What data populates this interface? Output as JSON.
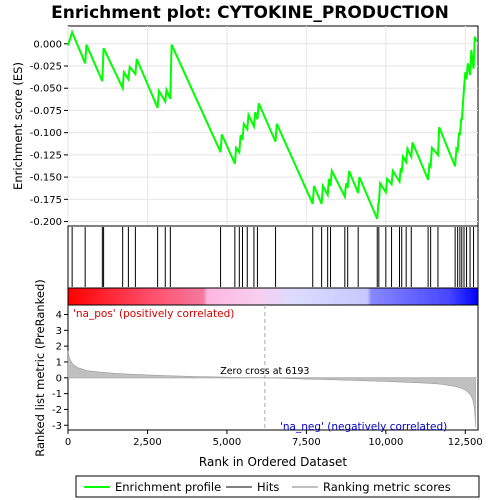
{
  "chart_data": {
    "type": "line",
    "title": "Enrichment plot: CYTOKINE_PRODUCTION",
    "xlabel": "Rank in Ordered Dataset",
    "ylabel_top": "Enrichment score (ES)",
    "ylabel_bottom": "Ranked list metric (PreRanked)",
    "xlim": [
      0,
      12900
    ],
    "es_ylim": [
      -0.205,
      0.02
    ],
    "metric_ylim": [
      -3.3,
      4.6
    ],
    "x_ticks": [
      0,
      2500,
      5000,
      7500,
      10000,
      12500
    ],
    "x_tick_labels": [
      "0",
      "2,500",
      "5,000",
      "7,500",
      "10,000",
      "12,500"
    ],
    "es_ticks": [
      0.0,
      -0.025,
      -0.05,
      -0.075,
      -0.1,
      -0.125,
      -0.15,
      -0.175,
      -0.2
    ],
    "es_tick_labels": [
      "0.000",
      "-0.025",
      "-0.050",
      "-0.075",
      "-0.100",
      "-0.125",
      "-0.150",
      "-0.175",
      "-0.200"
    ],
    "metric_ticks": [
      4,
      3,
      2,
      1,
      0,
      -1,
      -2,
      -3
    ],
    "metric_tick_labels": [
      "4",
      "3",
      "2",
      "1",
      "0",
      "-1",
      "-2",
      "-3"
    ],
    "zero_cross_rank": 6193,
    "annotations": {
      "zero_cross": "Zero cross at 6193",
      "pos_label": "'na_pos' (positively correlated)",
      "neg_label": "'na_neg' (negatively correlated)"
    },
    "legend": [
      {
        "name": "Enrichment profile",
        "color": "#00ff00"
      },
      {
        "name": "Hits",
        "color": "#000000"
      },
      {
        "name": "Ranking metric scores",
        "color": "#c0c0c0"
      }
    ],
    "legend_placement": "bottom",
    "colors": {
      "profile": "#00ff00",
      "hits": "#000000",
      "metric_fill": "#c0c0c0",
      "zero_line": "#b0b0b0"
    },
    "es_profile": {
      "x": [
        0,
        130,
        540,
        580,
        1080,
        1120,
        1720,
        1760,
        1900,
        1940,
        2120,
        2160,
        2820,
        2860,
        3060,
        3100,
        3220,
        3260,
        4800,
        4840,
        5250,
        5290,
        5390,
        5430,
        5490,
        5530,
        5640,
        5680,
        5850,
        5890,
        5960,
        6000,
        6530,
        6570,
        7700,
        7740,
        7980,
        8020,
        8170,
        8210,
        8260,
        8300,
        8710,
        8750,
        8800,
        8840,
        9130,
        9170,
        9730,
        9770,
        9780,
        9820,
        10000,
        10040,
        10180,
        10220,
        10430,
        10470,
        10500,
        10540,
        10640,
        10680,
        10800,
        10840,
        11330,
        11370,
        11410,
        11450,
        11640,
        11680,
        12180,
        12220,
        12260,
        12300,
        12330,
        12370,
        12390,
        12430,
        12460,
        12500,
        12540,
        12580,
        12650,
        12690,
        12760,
        12800,
        12850
      ],
      "y": [
        -0.002,
        0.013,
        -0.022,
        -0.001,
        -0.042,
        -0.005,
        -0.05,
        -0.032,
        -0.04,
        -0.026,
        -0.034,
        -0.017,
        -0.072,
        -0.053,
        -0.065,
        -0.052,
        -0.062,
        -0.001,
        -0.122,
        -0.102,
        -0.135,
        -0.117,
        -0.122,
        -0.103,
        -0.108,
        -0.09,
        -0.096,
        -0.08,
        -0.093,
        -0.077,
        -0.085,
        -0.067,
        -0.11,
        -0.09,
        -0.18,
        -0.16,
        -0.18,
        -0.16,
        -0.17,
        -0.152,
        -0.16,
        -0.143,
        -0.172,
        -0.157,
        -0.162,
        -0.143,
        -0.168,
        -0.15,
        -0.197,
        -0.178,
        -0.18,
        -0.157,
        -0.167,
        -0.152,
        -0.158,
        -0.143,
        -0.155,
        -0.14,
        -0.145,
        -0.127,
        -0.133,
        -0.118,
        -0.127,
        -0.111,
        -0.153,
        -0.136,
        -0.138,
        -0.117,
        -0.125,
        -0.094,
        -0.138,
        -0.118,
        -0.12,
        -0.1,
        -0.103,
        -0.084,
        -0.086,
        -0.065,
        -0.05,
        -0.032,
        -0.04,
        -0.022,
        -0.035,
        -0.007,
        -0.028,
        0.008,
        0.003
      ]
    },
    "hits": [
      130,
      540,
      1080,
      1120,
      1720,
      1900,
      2120,
      2820,
      3060,
      3220,
      4800,
      5250,
      5390,
      5490,
      5640,
      5850,
      5960,
      6530,
      7700,
      7980,
      8170,
      8260,
      8710,
      8800,
      9130,
      9730,
      9780,
      10000,
      10180,
      10430,
      10500,
      10640,
      10800,
      11330,
      11410,
      11640,
      12180,
      12260,
      12330,
      12390,
      12460,
      12540,
      12650,
      12760
    ],
    "metric_curve": {
      "x": [
        0,
        30,
        80,
        150,
        300,
        600,
        1000,
        1500,
        2000,
        2500,
        3000,
        3500,
        4000,
        4500,
        5000,
        5500,
        6000,
        6193,
        6500,
        7000,
        7500,
        8000,
        8500,
        9000,
        9500,
        10000,
        10500,
        11000,
        11500,
        11800,
        12000,
        12200,
        12400,
        12550,
        12650,
        12720,
        12760,
        12790,
        12810,
        12820
      ],
      "y": [
        1.7,
        1.35,
        1.1,
        0.85,
        0.65,
        0.45,
        0.36,
        0.28,
        0.22,
        0.18,
        0.14,
        0.11,
        0.08,
        0.06,
        0.04,
        0.02,
        0.01,
        0.0,
        -0.02,
        -0.05,
        -0.08,
        -0.11,
        -0.14,
        -0.17,
        -0.2,
        -0.23,
        -0.27,
        -0.31,
        -0.37,
        -0.42,
        -0.48,
        -0.56,
        -0.68,
        -0.85,
        -1.05,
        -1.3,
        -1.6,
        -2.0,
        -2.5,
        -3.1
      ]
    }
  }
}
